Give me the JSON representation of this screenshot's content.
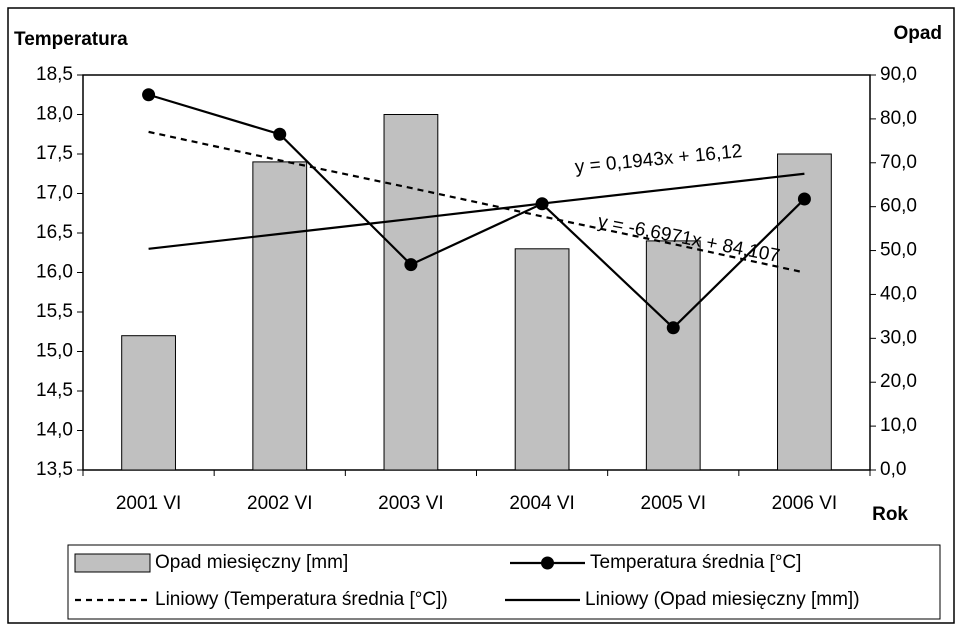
{
  "chart_data": {
    "type": "bar",
    "y_label": "Temperatura",
    "y2_label": "Opad",
    "x_label": "Rok",
    "categories": [
      "2001 VI",
      "2002 VI",
      "2003 VI",
      "2004 VI",
      "2005 VI",
      "2006 VI"
    ],
    "series": [
      {
        "name": "Opad miesięczny [mm]",
        "type": "bar",
        "axis": "y2",
        "color": "#c0c0c0",
        "values": [
          30.6,
          70.2,
          81.0,
          50.4,
          52.2,
          72.0
        ]
      },
      {
        "name": "Temperatura średnia [°C]",
        "type": "line",
        "marker": true,
        "color": "#000000",
        "values": [
          18.25,
          17.75,
          16.1,
          16.87,
          15.3,
          16.93
        ]
      },
      {
        "name": "Liniowy (Temperatura średnia [°C])",
        "type": "line",
        "dashed": true,
        "color": "#000000",
        "values": [
          17.78,
          17.42,
          17.07,
          16.71,
          16.36,
          16.0
        ]
      },
      {
        "name": "Liniowy (Opad miesięczny [mm])",
        "type": "line",
        "axis": "y2",
        "color": "#000000",
        "values": [
          50.4,
          53.8,
          57.2,
          60.7,
          64.1,
          67.5
        ]
      }
    ],
    "annotations": [
      "y = 0,1943x + 16,12",
      "y = -6,6971x + 84,107"
    ],
    "ylim": [
      13.5,
      18.5
    ],
    "yticks": [
      {
        "value": 13.5,
        "label": "13,5"
      },
      {
        "value": 14.0,
        "label": "14,0"
      },
      {
        "value": 14.5,
        "label": "14,5"
      },
      {
        "value": 15.0,
        "label": "15,0"
      },
      {
        "value": 15.5,
        "label": "15,5"
      },
      {
        "value": 16.0,
        "label": "16,0"
      },
      {
        "value": 16.5,
        "label": "16,5"
      },
      {
        "value": 17.0,
        "label": "17,0"
      },
      {
        "value": 17.5,
        "label": "17,5"
      },
      {
        "value": 18.0,
        "label": "18,0"
      },
      {
        "value": 18.5,
        "label": "18,5"
      }
    ],
    "y2lim": [
      0,
      90
    ],
    "y2ticks": [
      {
        "value": 0,
        "label": "0,0"
      },
      {
        "value": 10,
        "label": "10,0"
      },
      {
        "value": 20,
        "label": "20,0"
      },
      {
        "value": 30,
        "label": "30,0"
      },
      {
        "value": 40,
        "label": "40,0"
      },
      {
        "value": 50,
        "label": "50,0"
      },
      {
        "value": 60,
        "label": "60,0"
      },
      {
        "value": 70,
        "label": "70,0"
      },
      {
        "value": 80,
        "label": "80,0"
      },
      {
        "value": 90,
        "label": "90,0"
      }
    ],
    "grid": false,
    "legend": "bottom"
  }
}
